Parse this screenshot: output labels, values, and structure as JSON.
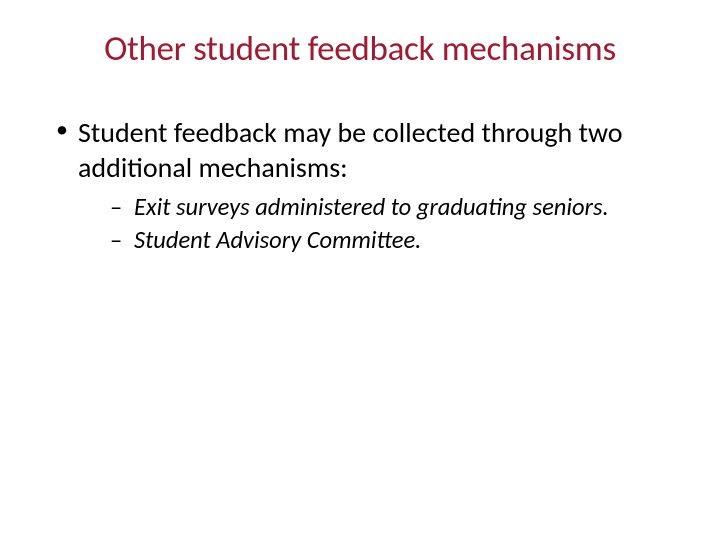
{
  "slide": {
    "title": "Other student feedback mechanisms",
    "title_color": "#9e1b32",
    "title_fontsize": 35,
    "background_color": "#ffffff",
    "body_color": "#000000",
    "bullets": [
      {
        "text": "Student feedback may be collected through two additional mechanisms:",
        "fontsize": 28,
        "sub_bullets": [
          {
            "text": "Exit surveys administered to graduating seniors.",
            "fontsize": 24.5,
            "italic": true
          },
          {
            "text": "Student Advisory Committee.",
            "fontsize": 24.5,
            "italic": true
          }
        ]
      }
    ]
  }
}
